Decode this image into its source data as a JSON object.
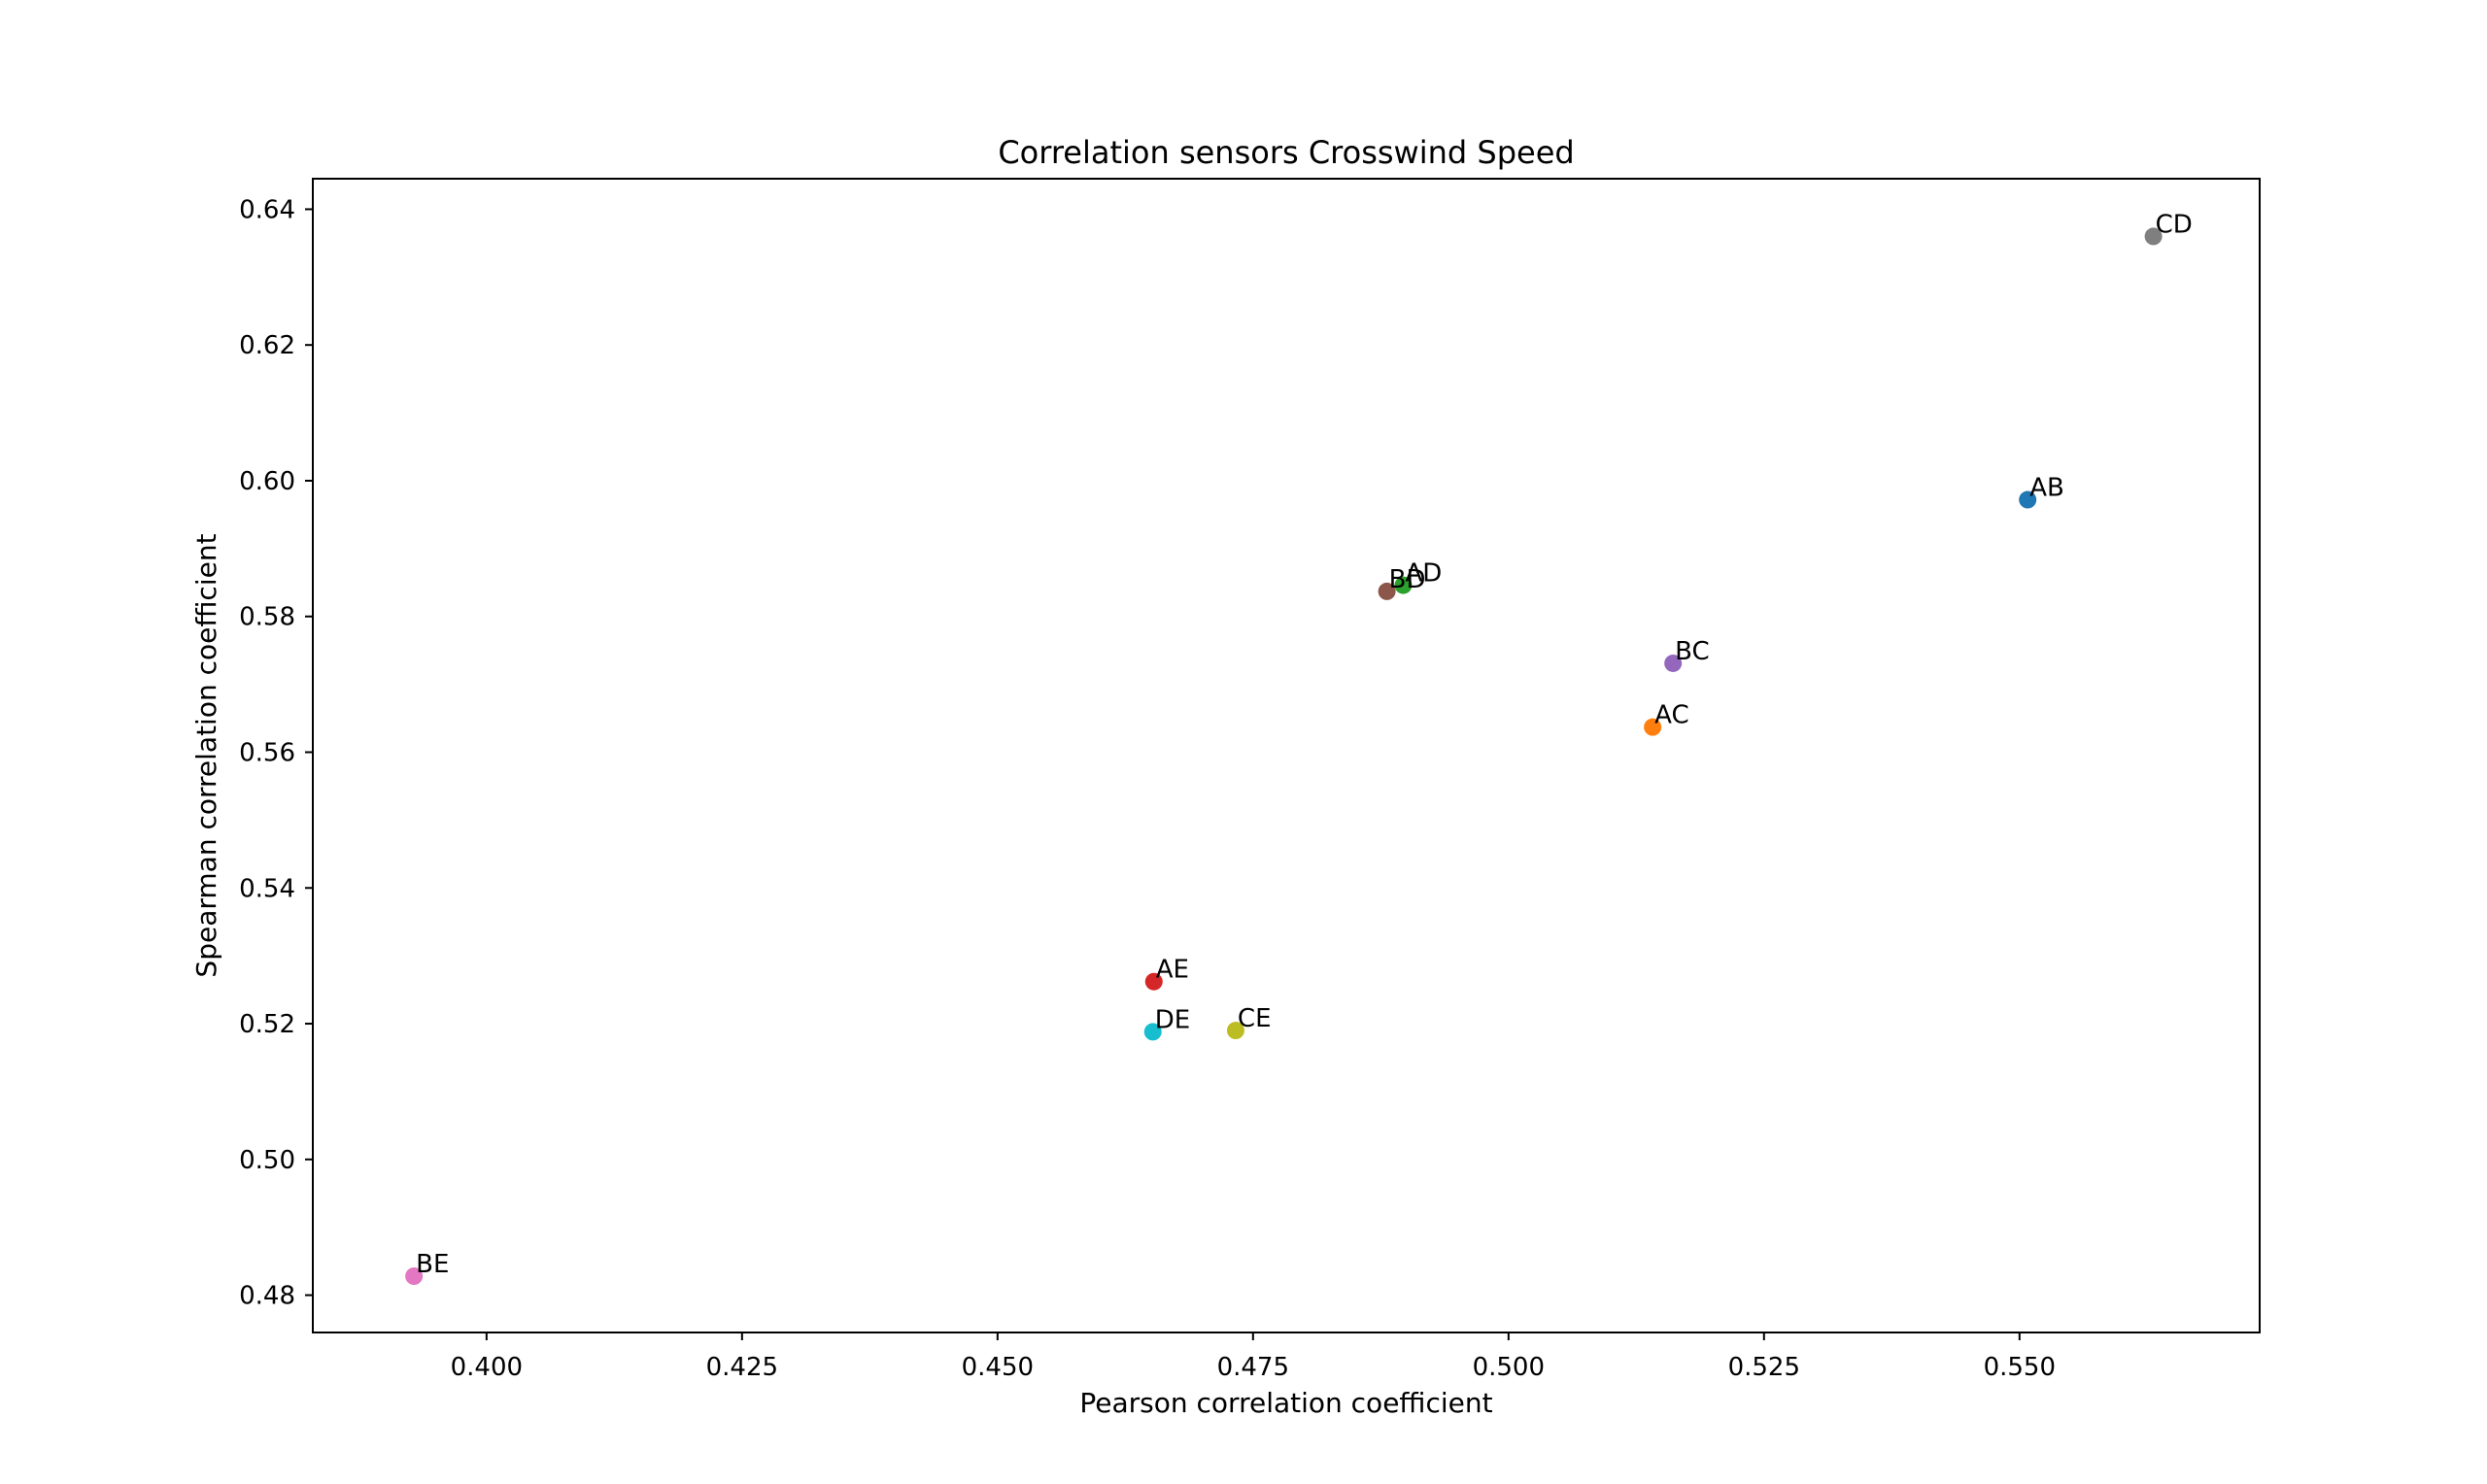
{
  "chart_data": {
    "type": "scatter",
    "title": "Correlation sensors Crosswind Speed",
    "xlabel": "Pearson correlation coefficient",
    "ylabel": "Spearman correlation coefficient",
    "xlim": [
      0.383,
      0.5735
    ],
    "ylim": [
      0.4745,
      0.6445
    ],
    "xticks": [
      "0.400",
      "0.425",
      "0.450",
      "0.475",
      "0.500",
      "0.525",
      "0.550"
    ],
    "yticks": [
      "0.48",
      "0.50",
      "0.52",
      "0.54",
      "0.56",
      "0.58",
      "0.60",
      "0.62",
      "0.64"
    ],
    "grid": false,
    "points": [
      {
        "label": "AB",
        "x": 0.5508,
        "y": 0.5972,
        "color": "#1f77b4"
      },
      {
        "label": "AC",
        "x": 0.5141,
        "y": 0.5637,
        "color": "#ff7f0e"
      },
      {
        "label": "AD",
        "x": 0.4897,
        "y": 0.5846,
        "color": "#2ca02c"
      },
      {
        "label": "AE",
        "x": 0.4653,
        "y": 0.5262,
        "color": "#d62728"
      },
      {
        "label": "BC",
        "x": 0.5161,
        "y": 0.5731,
        "color": "#9467bd"
      },
      {
        "label": "BD",
        "x": 0.4881,
        "y": 0.5837,
        "color": "#8c564b"
      },
      {
        "label": "BE",
        "x": 0.3929,
        "y": 0.4828,
        "color": "#e377c2"
      },
      {
        "label": "CD",
        "x": 0.5631,
        "y": 0.636,
        "color": "#7f7f7f"
      },
      {
        "label": "CE",
        "x": 0.4733,
        "y": 0.519,
        "color": "#bcbd22"
      },
      {
        "label": "DE",
        "x": 0.4652,
        "y": 0.5188,
        "color": "#17becf"
      }
    ]
  }
}
